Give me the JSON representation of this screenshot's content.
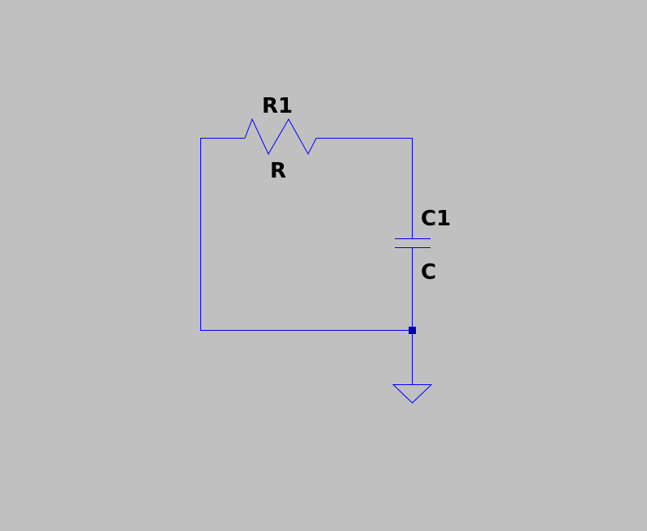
{
  "schematic": {
    "components": [
      {
        "type": "resistor",
        "ref": "R1",
        "value": "R"
      },
      {
        "type": "capacitor",
        "ref": "C1",
        "value": "C"
      }
    ],
    "ground": {
      "type": "ground"
    },
    "colors": {
      "background": "#c0c0c0",
      "wire": "#0000ff",
      "junction": "#0000aa",
      "text": "#000000"
    }
  }
}
